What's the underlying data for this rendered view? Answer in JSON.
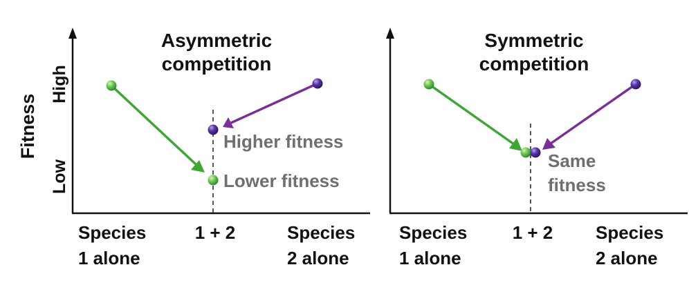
{
  "figure": {
    "y_axis_label": "Fitness",
    "y_ticks": [
      "Low",
      "High"
    ],
    "colors": {
      "species1": "#4fae3c",
      "species1_arrow": "#3fa535",
      "species2": "#5b2c91",
      "species2_arrow": "#7b2f96",
      "axis": "#111111",
      "dashed_line": "#555555",
      "annotation_text": "#6f6f70"
    }
  },
  "chart_data": [
    {
      "type": "line",
      "title": [
        "Asymmetric",
        "competition"
      ],
      "x_categories": [
        [
          "Species",
          "1 alone"
        ],
        [
          "1 + 2"
        ],
        [
          "Species",
          "2 alone"
        ]
      ],
      "y_levels": [
        "Low",
        "High"
      ],
      "series": [
        {
          "name": "Species 1",
          "start": {
            "x": "Species 1 alone",
            "y": "High"
          },
          "end": {
            "x": "1 + 2",
            "y": "Low"
          }
        },
        {
          "name": "Species 2",
          "start": {
            "x": "Species 2 alone",
            "y": "High"
          },
          "end": {
            "x": "1 + 2",
            "y": "Medium"
          }
        }
      ],
      "annotations": [
        {
          "text": "Higher fitness",
          "series": "Species 2"
        },
        {
          "text": "Lower fitness",
          "series": "Species 1"
        }
      ]
    },
    {
      "type": "line",
      "title": [
        "Symmetric",
        "competition"
      ],
      "x_categories": [
        [
          "Species",
          "1 alone"
        ],
        [
          "1 + 2"
        ],
        [
          "Species",
          "2 alone"
        ]
      ],
      "y_levels": [
        "Low",
        "High"
      ],
      "series": [
        {
          "name": "Species 1",
          "start": {
            "x": "Species 1 alone",
            "y": "High"
          },
          "end": {
            "x": "1 + 2",
            "y": "Medium-low"
          }
        },
        {
          "name": "Species 2",
          "start": {
            "x": "Species 2 alone",
            "y": "High"
          },
          "end": {
            "x": "1 + 2",
            "y": "Medium-low"
          }
        }
      ],
      "annotations": [
        {
          "text": [
            "Same",
            "fitness"
          ],
          "series": "both"
        }
      ]
    }
  ]
}
